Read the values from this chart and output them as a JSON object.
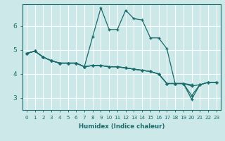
{
  "xlabel": "Humidex (Indice chaleur)",
  "bg_color": "#cce8e8",
  "grid_color": "#ffffff",
  "line_color": "#1a6b6b",
  "xlim": [
    -0.5,
    23.5
  ],
  "ylim": [
    2.5,
    6.9
  ],
  "xticks": [
    0,
    1,
    2,
    3,
    4,
    5,
    6,
    7,
    8,
    9,
    10,
    11,
    12,
    13,
    14,
    15,
    16,
    17,
    18,
    19,
    20,
    21,
    22,
    23
  ],
  "yticks": [
    3,
    4,
    5,
    6
  ],
  "lines": [
    {
      "x": [
        0,
        1,
        2,
        3,
        4,
        5,
        6,
        7,
        8,
        9,
        10,
        11,
        12,
        13,
        14,
        15,
        16,
        17,
        18,
        19,
        20,
        21,
        22,
        23
      ],
      "y": [
        4.85,
        4.95,
        4.7,
        4.55,
        4.45,
        4.45,
        4.45,
        4.3,
        5.55,
        6.75,
        5.85,
        5.85,
        6.65,
        6.3,
        6.25,
        5.5,
        5.5,
        5.05,
        3.6,
        3.6,
        3.55,
        null,
        null,
        null
      ]
    },
    {
      "x": [
        0,
        1,
        2,
        3,
        4,
        5,
        6,
        7,
        8,
        9,
        10,
        11,
        12,
        13,
        14,
        15,
        16,
        17,
        18,
        19,
        20,
        21,
        22,
        23
      ],
      "y": [
        4.85,
        4.95,
        4.7,
        4.55,
        4.45,
        4.45,
        4.45,
        4.3,
        4.35,
        4.35,
        4.3,
        4.3,
        4.25,
        4.2,
        4.15,
        4.1,
        4.0,
        3.6,
        3.6,
        3.6,
        2.95,
        3.55,
        3.65,
        3.65
      ]
    },
    {
      "x": [
        0,
        1,
        2,
        3,
        4,
        5,
        6,
        7,
        8,
        9,
        10,
        11,
        12,
        13,
        14,
        15,
        16,
        17,
        18,
        19,
        20,
        21,
        22,
        23
      ],
      "y": [
        4.85,
        4.95,
        4.7,
        4.55,
        4.45,
        4.45,
        4.45,
        4.3,
        4.35,
        4.35,
        4.3,
        4.3,
        4.25,
        4.2,
        4.15,
        4.1,
        4.0,
        3.6,
        3.6,
        3.6,
        3.1,
        3.55,
        3.65,
        3.65
      ]
    },
    {
      "x": [
        0,
        1,
        2,
        3,
        4,
        5,
        6,
        7,
        8,
        9,
        10,
        11,
        12,
        13,
        14,
        15,
        16,
        17,
        18,
        19,
        20,
        21,
        22,
        23
      ],
      "y": [
        4.85,
        4.95,
        4.7,
        4.55,
        4.45,
        4.45,
        4.45,
        4.3,
        4.35,
        4.35,
        4.3,
        4.3,
        4.25,
        4.2,
        4.15,
        4.1,
        4.0,
        3.6,
        3.6,
        3.6,
        3.5,
        3.55,
        3.65,
        3.65
      ]
    }
  ]
}
